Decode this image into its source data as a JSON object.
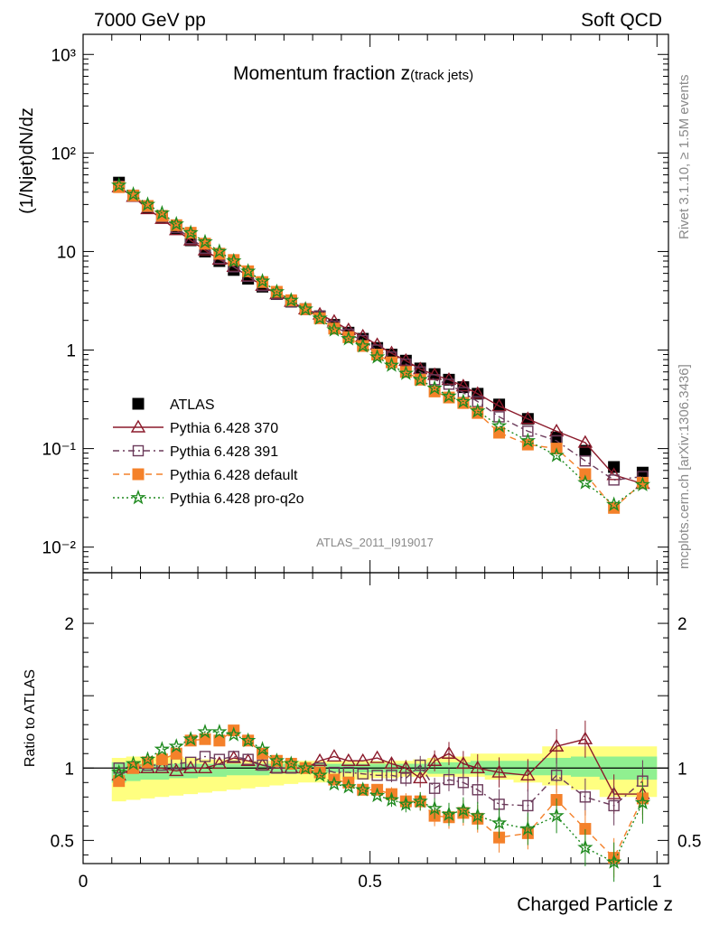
{
  "header": {
    "left": "7000 GeV pp",
    "right": "Soft QCD",
    "side_top": "Rivet 3.1.10, ≥ 1.5M events",
    "side_bottom": "mcplots.cern.ch [arXiv:1306.3436]"
  },
  "chart_data": [
    {
      "type": "line",
      "title_main": "Momentum fraction ",
      "title_var": "z",
      "title_sub": "(track jets)",
      "ylabel": "(1/Njet)dN/dz",
      "yscale": "log",
      "ylim": [
        0.0055,
        1600
      ],
      "xlim": [
        0,
        1.02
      ],
      "analysis_label": "ATLAS_2011_I919017",
      "ytick_labels": [
        "10⁻²",
        "10⁻¹",
        "1",
        "10",
        "10²",
        "10³"
      ],
      "x": [
        0.0625,
        0.0875,
        0.1125,
        0.1375,
        0.1625,
        0.1875,
        0.2125,
        0.2375,
        0.2625,
        0.2875,
        0.3125,
        0.3375,
        0.3625,
        0.3875,
        0.4125,
        0.4375,
        0.4625,
        0.4875,
        0.5125,
        0.5375,
        0.5625,
        0.5875,
        0.6125,
        0.6375,
        0.6625,
        0.6875,
        0.725,
        0.775,
        0.825,
        0.875,
        0.925,
        0.975
      ],
      "series": [
        {
          "name": "ATLAS",
          "color": "#000000",
          "marker": "square",
          "values": [
            50,
            37,
            28,
            22,
            17,
            13,
            10,
            8,
            6.5,
            5.3,
            4.4,
            3.7,
            3.1,
            2.6,
            2.2,
            1.8,
            1.5,
            1.3,
            1.05,
            0.9,
            0.78,
            0.65,
            0.57,
            0.5,
            0.42,
            0.36,
            0.28,
            0.2,
            0.13,
            0.095,
            0.065,
            0.057
          ]
        },
        {
          "name": "Pythia 6.428 370",
          "color": "#8b1a2b",
          "marker": "triangle-open",
          "style": "solid",
          "values": [
            45,
            36,
            27,
            21.5,
            16.5,
            13,
            10.3,
            8.3,
            7,
            5.6,
            4.5,
            3.7,
            3.1,
            2.6,
            2.3,
            1.95,
            1.6,
            1.38,
            1.13,
            0.93,
            0.78,
            0.64,
            0.56,
            0.5,
            0.43,
            0.36,
            0.27,
            0.2,
            0.15,
            0.115,
            0.054,
            0.044
          ]
        },
        {
          "name": "Pythia 6.428 391",
          "color": "#6b3a5a",
          "marker": "square-open",
          "style": "dashdot",
          "values": [
            46,
            37,
            28.5,
            22.5,
            17.5,
            13.5,
            10.8,
            8.5,
            7,
            5.6,
            4.5,
            3.7,
            3.1,
            2.6,
            2.2,
            1.75,
            1.45,
            1.25,
            1.0,
            0.85,
            0.72,
            0.6,
            0.5,
            0.45,
            0.37,
            0.3,
            0.21,
            0.15,
            0.12,
            0.075,
            0.048,
            0.052
          ]
        },
        {
          "name": "Pythia 6.428 default",
          "color": "#f4812a",
          "marker": "square",
          "style": "dashed",
          "values": [
            45,
            37,
            29,
            23,
            18.5,
            15.5,
            12,
            9.5,
            8.2,
            6.3,
            4.9,
            3.9,
            3.2,
            2.6,
            2.1,
            1.65,
            1.35,
            1.1,
            0.9,
            0.75,
            0.6,
            0.5,
            0.38,
            0.33,
            0.29,
            0.23,
            0.145,
            0.11,
            0.1,
            0.055,
            0.025,
            0.045
          ]
        },
        {
          "name": "Pythia 6.428 pro-q2o",
          "color": "#1e8a1e",
          "marker": "star",
          "style": "dotted",
          "values": [
            47,
            38,
            30,
            24.5,
            19,
            15.5,
            12.5,
            10,
            8,
            6.3,
            5,
            3.9,
            3.2,
            2.6,
            2.1,
            1.6,
            1.3,
            1.1,
            0.85,
            0.7,
            0.58,
            0.5,
            0.41,
            0.34,
            0.3,
            0.24,
            0.17,
            0.12,
            0.085,
            0.045,
            0.027,
            0.043
          ]
        }
      ],
      "legend_position": "lower-left"
    },
    {
      "type": "line",
      "ylabel": "Ratio to ATLAS",
      "xlabel": "Charged Particle z",
      "ylim": [
        0.34,
        2.35
      ],
      "xlim": [
        0,
        1.02
      ],
      "ytick_labels": [
        "0.5",
        "1",
        "2"
      ],
      "xtick_labels": [
        "0",
        "0.5",
        "1"
      ],
      "ratios": {
        "Pythia 6.428 370": [
          0.95,
          1.0,
          1.0,
          1.0,
          0.98,
          1.0,
          1.0,
          1.03,
          1.07,
          1.05,
          1.02,
          1.0,
          1.0,
          1.0,
          1.05,
          1.08,
          1.05,
          1.05,
          1.07,
          1.03,
          1.0,
          0.93,
          1.05,
          1.1,
          1.03,
          1.0,
          0.97,
          0.95,
          1.15,
          1.2,
          0.82,
          0.82
        ],
        "Pythia 6.428 391": [
          1.0,
          1.0,
          1.02,
          1.02,
          1.03,
          1.04,
          1.08,
          1.06,
          1.08,
          1.06,
          1.02,
          1.0,
          1.0,
          1.0,
          1.0,
          0.97,
          0.97,
          0.96,
          0.95,
          0.95,
          0.93,
          1.02,
          0.86,
          0.92,
          0.9,
          0.85,
          0.75,
          0.74,
          0.95,
          0.8,
          0.74,
          0.91
        ],
        "Pythia 6.428 default": [
          0.91,
          1.0,
          1.04,
          1.06,
          1.1,
          1.19,
          1.2,
          1.19,
          1.26,
          1.19,
          1.1,
          1.05,
          1.03,
          1.0,
          0.97,
          0.92,
          0.9,
          0.85,
          0.85,
          0.82,
          0.77,
          0.77,
          0.67,
          0.66,
          0.69,
          0.65,
          0.52,
          0.55,
          0.78,
          0.58,
          0.38,
          0.79
        ],
        "Pythia 6.428 pro-q2o": [
          0.97,
          1.03,
          1.06,
          1.13,
          1.15,
          1.2,
          1.25,
          1.25,
          1.23,
          1.19,
          1.13,
          1.05,
          1.03,
          1.0,
          0.95,
          0.89,
          0.87,
          0.85,
          0.81,
          0.78,
          0.75,
          0.77,
          0.72,
          0.68,
          0.71,
          0.67,
          0.62,
          0.58,
          0.67,
          0.45,
          0.35,
          0.76
        ]
      },
      "band_outer": {
        "lo": [
          0.77,
          0.78,
          0.79,
          0.8,
          0.81,
          0.82,
          0.83,
          0.84,
          0.85,
          0.86,
          0.87,
          0.88,
          0.89,
          0.9,
          0.9,
          0.91,
          0.92,
          0.92,
          0.93,
          0.93,
          0.94,
          0.94,
          0.94,
          0.94,
          0.94,
          0.94,
          0.92,
          0.9,
          0.88,
          0.85,
          0.8,
          0.8
        ],
        "hi": [
          1.07,
          1.08,
          1.08,
          1.08,
          1.08,
          1.07,
          1.06,
          1.06,
          1.06,
          1.05,
          1.05,
          1.05,
          1.05,
          1.05,
          1.05,
          1.05,
          1.05,
          1.05,
          1.05,
          1.05,
          1.05,
          1.06,
          1.07,
          1.08,
          1.08,
          1.1,
          1.1,
          1.1,
          1.15,
          1.15,
          1.15,
          1.15
        ]
      },
      "band_inner": {
        "lo": [
          0.9,
          0.91,
          0.92,
          0.92,
          0.93,
          0.93,
          0.94,
          0.94,
          0.95,
          0.95,
          0.95,
          0.96,
          0.96,
          0.96,
          0.96,
          0.97,
          0.97,
          0.97,
          0.97,
          0.97,
          0.97,
          0.97,
          0.96,
          0.96,
          0.96,
          0.96,
          0.95,
          0.95,
          0.95,
          0.94,
          0.92,
          0.92
        ],
        "hi": [
          1.04,
          1.04,
          1.03,
          1.03,
          1.03,
          1.03,
          1.03,
          1.03,
          1.03,
          1.03,
          1.03,
          1.03,
          1.03,
          1.03,
          1.03,
          1.03,
          1.03,
          1.03,
          1.03,
          1.03,
          1.03,
          1.03,
          1.04,
          1.04,
          1.04,
          1.05,
          1.05,
          1.05,
          1.07,
          1.08,
          1.08,
          1.08
        ]
      }
    }
  ]
}
